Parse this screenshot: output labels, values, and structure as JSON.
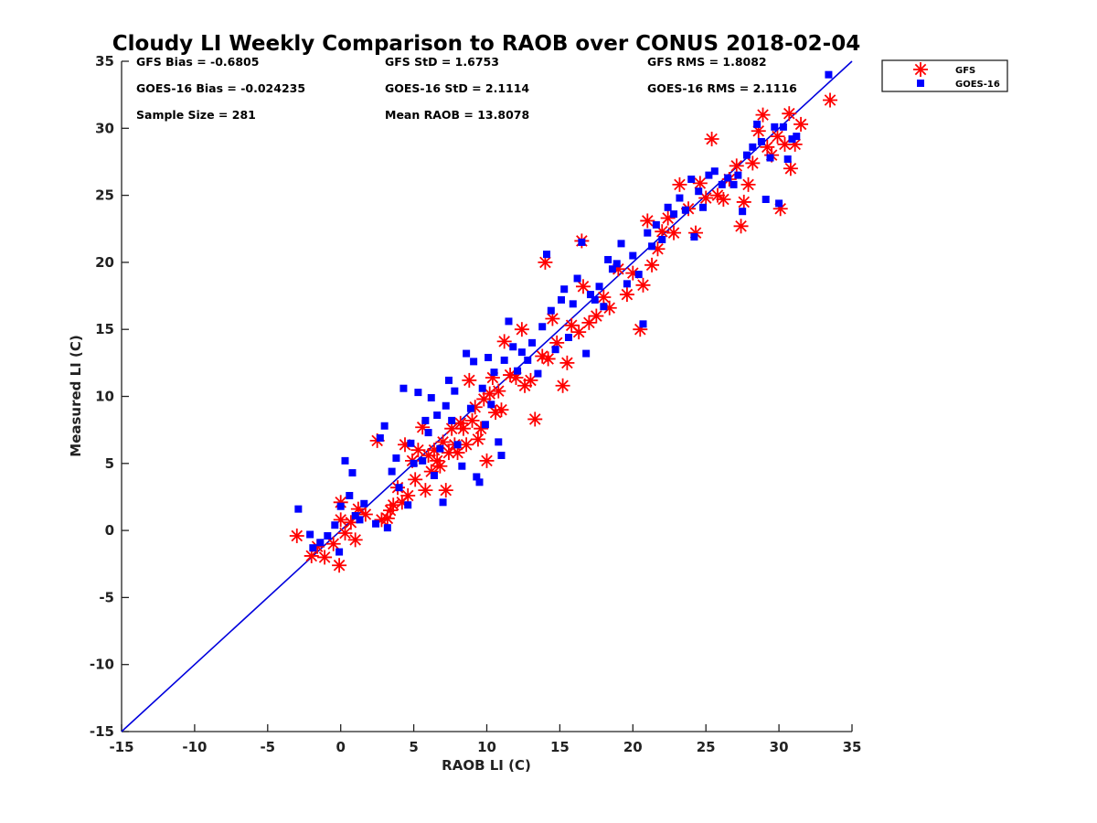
{
  "chart_data": {
    "type": "scatter",
    "title": "Cloudy LI Weekly Comparison to RAOB over CONUS 2018-02-04",
    "xlabel": "RAOB LI (C)",
    "ylabel": "Measured LI (C)",
    "xlim": [
      -15,
      35
    ],
    "ylim": [
      -15,
      35
    ],
    "xticks": [
      "-15",
      "-10",
      "-5",
      "0",
      "5",
      "10",
      "15",
      "20",
      "25",
      "30",
      "35"
    ],
    "yticks": [
      "-15",
      "-10",
      "-5",
      "0",
      "5",
      "10",
      "15",
      "20",
      "25",
      "30",
      "35"
    ],
    "grid": false,
    "legend_position": "outside-top-right",
    "reference_line": {
      "x": [
        -15,
        35
      ],
      "y": [
        -15,
        35
      ],
      "color": "#0000dd"
    },
    "stats": [
      [
        "GFS Bias = -0.6805",
        "GFS StD = 1.6753",
        "GFS RMS = 1.8082"
      ],
      [
        "GOES-16 Bias = -0.024235",
        "GOES-16 StD = 2.1114",
        "GOES-16 RMS = 2.1116"
      ],
      [
        "Sample Size = 281",
        "Mean RAOB = 13.8078",
        ""
      ]
    ],
    "series": [
      {
        "name": "GFS",
        "marker": "asterisk",
        "color": "#ff0000",
        "points": [
          [
            -3,
            -0.4
          ],
          [
            -2,
            -1.9
          ],
          [
            -1.6,
            -1.2
          ],
          [
            -1.1,
            -2
          ],
          [
            -0.5,
            -1
          ],
          [
            -0.1,
            -2.6
          ],
          [
            0,
            0.8
          ],
          [
            0,
            2.1
          ],
          [
            0.3,
            -0.2
          ],
          [
            0.7,
            0.6
          ],
          [
            1,
            -0.7
          ],
          [
            1.2,
            1.6
          ],
          [
            1.7,
            1.2
          ],
          [
            2.5,
            6.7
          ],
          [
            2.8,
            0.8
          ],
          [
            3.2,
            0.9
          ],
          [
            3.4,
            1.5
          ],
          [
            3.6,
            1.9
          ],
          [
            3.9,
            3.2
          ],
          [
            4.2,
            2.1
          ],
          [
            4.4,
            6.4
          ],
          [
            4.6,
            2.6
          ],
          [
            4.9,
            5.2
          ],
          [
            5.1,
            3.8
          ],
          [
            5.3,
            6
          ],
          [
            5.6,
            7.7
          ],
          [
            5.8,
            3
          ],
          [
            6,
            5.6
          ],
          [
            6.2,
            4.4
          ],
          [
            6.4,
            6
          ],
          [
            6.6,
            5.2
          ],
          [
            6.8,
            4.8
          ],
          [
            7,
            6.6
          ],
          [
            7.2,
            3
          ],
          [
            7.4,
            5.8
          ],
          [
            7.6,
            7.6
          ],
          [
            7.8,
            6.4
          ],
          [
            8,
            5.8
          ],
          [
            8.2,
            8
          ],
          [
            8.4,
            7.6
          ],
          [
            8.6,
            6.4
          ],
          [
            8.8,
            11.2
          ],
          [
            9,
            8.2
          ],
          [
            9.2,
            9.2
          ],
          [
            9.4,
            6.8
          ],
          [
            9.6,
            7.6
          ],
          [
            9.8,
            9.8
          ],
          [
            10,
            5.2
          ],
          [
            10.2,
            10.2
          ],
          [
            10.4,
            11.4
          ],
          [
            10.6,
            8.8
          ],
          [
            10.8,
            10.4
          ],
          [
            11,
            9
          ],
          [
            11.2,
            14.1
          ],
          [
            11.6,
            11.6
          ],
          [
            12,
            11.4
          ],
          [
            12.4,
            15
          ],
          [
            12.6,
            10.8
          ],
          [
            13,
            11.2
          ],
          [
            13.3,
            8.3
          ],
          [
            13.8,
            13
          ],
          [
            14,
            20
          ],
          [
            14.2,
            12.8
          ],
          [
            14.5,
            15.8
          ],
          [
            14.8,
            14
          ],
          [
            15.2,
            10.8
          ],
          [
            15.5,
            12.5
          ],
          [
            15.8,
            15.3
          ],
          [
            16.3,
            14.8
          ],
          [
            16.6,
            18.2
          ],
          [
            16.5,
            21.6
          ],
          [
            17,
            15.5
          ],
          [
            17.5,
            16
          ],
          [
            18,
            17.4
          ],
          [
            18.4,
            16.6
          ],
          [
            19,
            19.5
          ],
          [
            19.6,
            17.6
          ],
          [
            20,
            19.2
          ],
          [
            20.5,
            15
          ],
          [
            20.7,
            18.3
          ],
          [
            21,
            23.1
          ],
          [
            21.3,
            19.8
          ],
          [
            21.7,
            21
          ],
          [
            22,
            22.3
          ],
          [
            22.4,
            23.3
          ],
          [
            22.8,
            22.2
          ],
          [
            23.2,
            25.8
          ],
          [
            23.8,
            24
          ],
          [
            24.3,
            22.2
          ],
          [
            24.6,
            25.9
          ],
          [
            25,
            24.8
          ],
          [
            25.4,
            29.2
          ],
          [
            25.8,
            25
          ],
          [
            26.2,
            24.7
          ],
          [
            26.6,
            26.2
          ],
          [
            27.1,
            27.2
          ],
          [
            27.4,
            22.7
          ],
          [
            27.6,
            24.5
          ],
          [
            27.9,
            25.8
          ],
          [
            28.2,
            27.4
          ],
          [
            28.6,
            29.8
          ],
          [
            28.9,
            31
          ],
          [
            29.2,
            28.6
          ],
          [
            29.5,
            28
          ],
          [
            29.9,
            29.4
          ],
          [
            30.1,
            24
          ],
          [
            30.4,
            28.8
          ],
          [
            30.7,
            31.1
          ],
          [
            30.8,
            27
          ],
          [
            31.1,
            28.8
          ],
          [
            31.5,
            30.3
          ],
          [
            33.5,
            32.1
          ]
        ]
      },
      {
        "name": "GOES-16",
        "marker": "square",
        "color": "#0000ff",
        "points": [
          [
            -2.9,
            1.6
          ],
          [
            -2.1,
            -0.3
          ],
          [
            -1.9,
            -1.3
          ],
          [
            -1.4,
            -0.9
          ],
          [
            -0.9,
            -0.4
          ],
          [
            -0.4,
            0.4
          ],
          [
            -0.1,
            -1.6
          ],
          [
            0,
            1.8
          ],
          [
            0.3,
            5.2
          ],
          [
            0.6,
            2.6
          ],
          [
            0.8,
            4.3
          ],
          [
            1,
            1.1
          ],
          [
            1.3,
            0.8
          ],
          [
            1.6,
            2
          ],
          [
            2.4,
            0.5
          ],
          [
            2.7,
            6.9
          ],
          [
            3,
            7.8
          ],
          [
            3.2,
            0.2
          ],
          [
            3.5,
            4.4
          ],
          [
            3.8,
            5.4
          ],
          [
            4,
            3.2
          ],
          [
            4.3,
            10.6
          ],
          [
            4.6,
            1.9
          ],
          [
            4.8,
            6.5
          ],
          [
            5,
            5
          ],
          [
            5.3,
            10.3
          ],
          [
            5.6,
            5.2
          ],
          [
            5.8,
            8.2
          ],
          [
            6,
            7.3
          ],
          [
            6.2,
            9.9
          ],
          [
            6.4,
            4.1
          ],
          [
            6.6,
            8.6
          ],
          [
            6.8,
            6.1
          ],
          [
            7,
            2.1
          ],
          [
            7.2,
            9.3
          ],
          [
            7.4,
            11.2
          ],
          [
            7.6,
            8.2
          ],
          [
            7.8,
            10.4
          ],
          [
            8,
            6.4
          ],
          [
            8.3,
            4.8
          ],
          [
            8.6,
            13.2
          ],
          [
            8.9,
            9.1
          ],
          [
            9.1,
            12.6
          ],
          [
            9.3,
            4
          ],
          [
            9.5,
            3.6
          ],
          [
            9.7,
            10.6
          ],
          [
            9.9,
            7.9
          ],
          [
            10.1,
            12.9
          ],
          [
            10.3,
            9.4
          ],
          [
            10.5,
            11.8
          ],
          [
            10.8,
            6.6
          ],
          [
            11,
            5.6
          ],
          [
            11.2,
            12.7
          ],
          [
            11.5,
            15.6
          ],
          [
            11.8,
            13.7
          ],
          [
            12.1,
            11.9
          ],
          [
            12.4,
            13.3
          ],
          [
            12.8,
            12.7
          ],
          [
            13.1,
            14
          ],
          [
            13.5,
            11.7
          ],
          [
            13.8,
            15.2
          ],
          [
            14.1,
            20.6
          ],
          [
            14.4,
            16.4
          ],
          [
            14.7,
            13.5
          ],
          [
            15.1,
            17.2
          ],
          [
            15.3,
            18
          ],
          [
            15.6,
            14.4
          ],
          [
            15.9,
            16.9
          ],
          [
            16.2,
            18.8
          ],
          [
            16.5,
            21.5
          ],
          [
            16.8,
            13.2
          ],
          [
            17.1,
            17.6
          ],
          [
            17.4,
            17.2
          ],
          [
            17.7,
            18.2
          ],
          [
            18,
            16.7
          ],
          [
            18.3,
            20.2
          ],
          [
            18.6,
            19.5
          ],
          [
            18.9,
            19.9
          ],
          [
            19.2,
            21.4
          ],
          [
            19.6,
            18.4
          ],
          [
            20,
            20.5
          ],
          [
            20.4,
            19.1
          ],
          [
            20.7,
            15.4
          ],
          [
            21,
            22.2
          ],
          [
            21.3,
            21.2
          ],
          [
            21.6,
            22.8
          ],
          [
            22,
            21.7
          ],
          [
            22.4,
            24.1
          ],
          [
            22.8,
            23.6
          ],
          [
            23.2,
            24.8
          ],
          [
            23.6,
            23.9
          ],
          [
            24,
            26.2
          ],
          [
            24.2,
            21.9
          ],
          [
            24.5,
            25.3
          ],
          [
            24.8,
            24.1
          ],
          [
            25.2,
            26.5
          ],
          [
            25.6,
            26.8
          ],
          [
            26.1,
            25.8
          ],
          [
            26.5,
            26.3
          ],
          [
            26.9,
            25.8
          ],
          [
            27.2,
            26.5
          ],
          [
            27.5,
            23.8
          ],
          [
            27.8,
            28
          ],
          [
            28.2,
            28.6
          ],
          [
            28.5,
            30.3
          ],
          [
            28.8,
            29
          ],
          [
            29.1,
            24.7
          ],
          [
            29.4,
            27.8
          ],
          [
            29.7,
            30.1
          ],
          [
            30,
            24.4
          ],
          [
            30.3,
            30.1
          ],
          [
            30.6,
            27.7
          ],
          [
            30.9,
            29.2
          ],
          [
            31.2,
            29.4
          ],
          [
            33.4,
            34
          ]
        ]
      }
    ]
  }
}
